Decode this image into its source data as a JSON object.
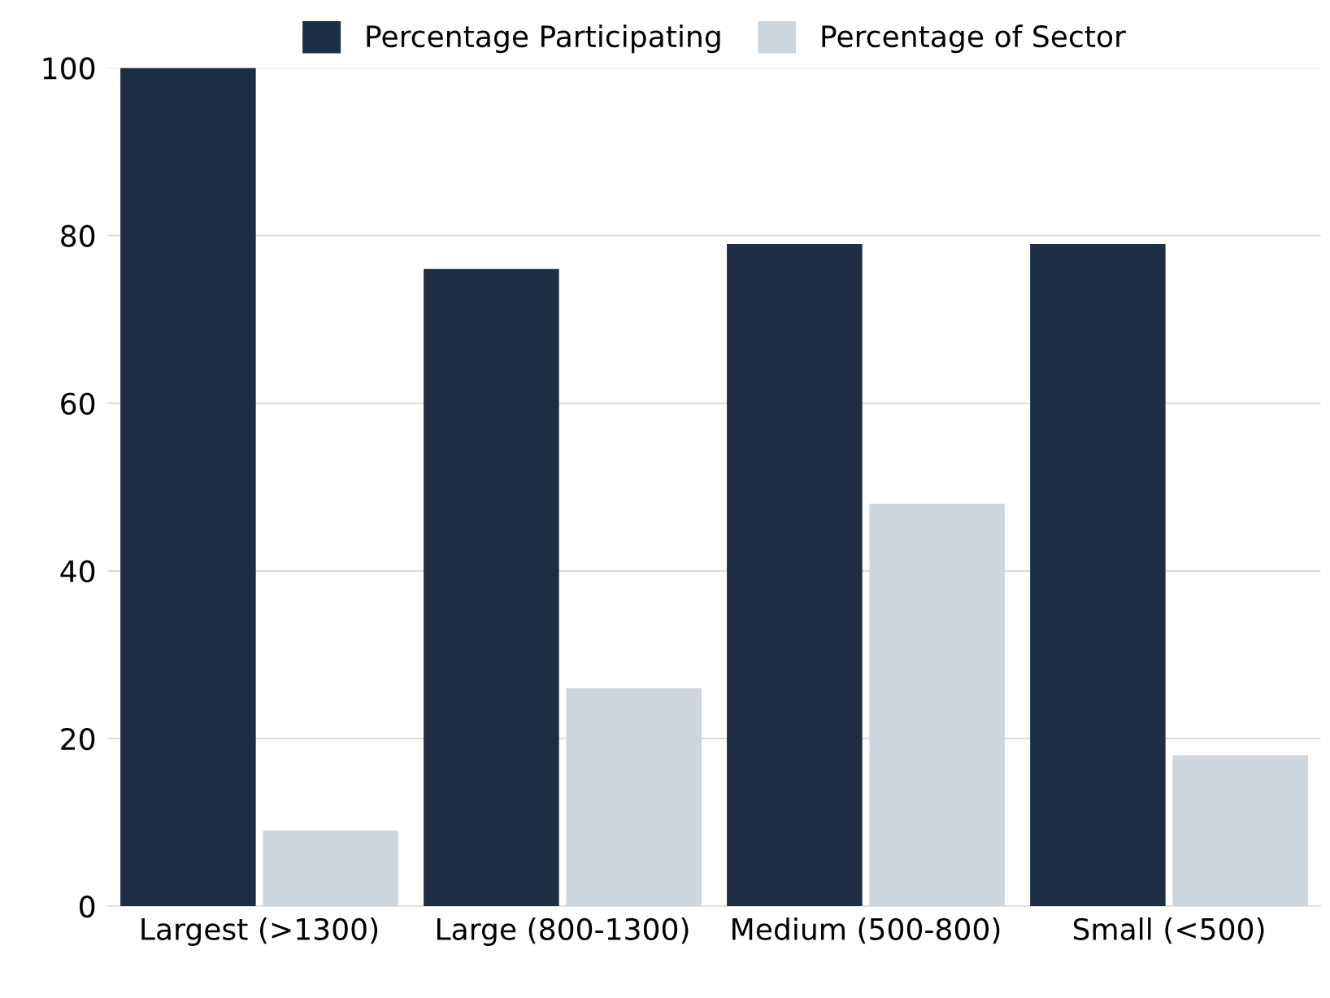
{
  "chart_data": {
    "type": "bar",
    "categories": [
      "Largest (>1300)",
      "Large (800-1300)",
      "Medium (500-800)",
      "Small (<500)"
    ],
    "series": [
      {
        "name": "Percentage Participating",
        "color": "#1c2d44",
        "values": [
          100,
          76,
          79,
          79
        ]
      },
      {
        "name": "Percentage of Sector",
        "color": "#ccd6dc",
        "values": [
          9,
          26,
          48,
          18
        ]
      }
    ],
    "ylim": [
      0,
      100
    ],
    "yticks": [
      0,
      20,
      40,
      60,
      80,
      100
    ],
    "grid": "y",
    "legend": "top"
  }
}
